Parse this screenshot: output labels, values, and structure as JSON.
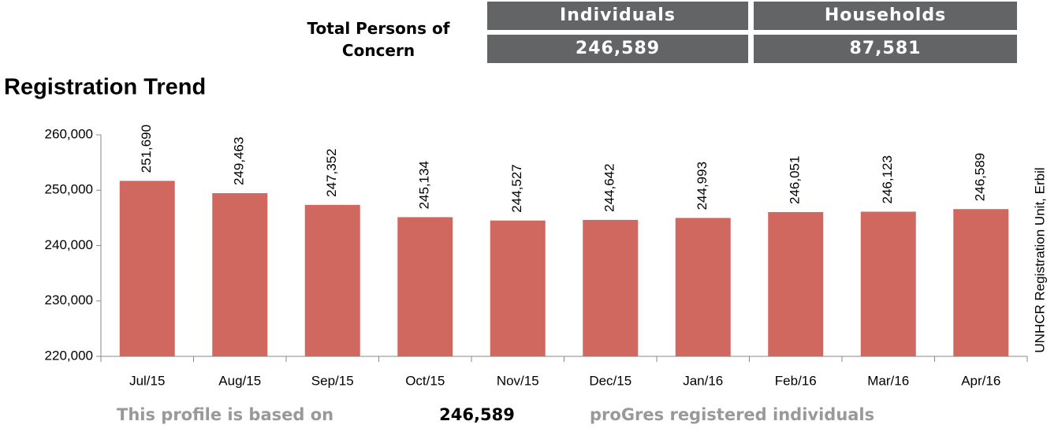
{
  "header": {
    "label": "Total Persons of Concern",
    "stats": [
      {
        "label": "Individuals",
        "value": "246,589"
      },
      {
        "label": "Households",
        "value": "87,581"
      }
    ]
  },
  "chart_data": {
    "type": "bar",
    "title": "Registration Trend",
    "categories": [
      "Jul/15",
      "Aug/15",
      "Sep/15",
      "Oct/15",
      "Nov/15",
      "Dec/15",
      "Jan/16",
      "Feb/16",
      "Mar/16",
      "Apr/16"
    ],
    "values": [
      251690,
      249463,
      247352,
      245134,
      244527,
      244642,
      244993,
      246051,
      246123,
      246589
    ],
    "value_labels": [
      "251,690",
      "249,463",
      "247,352",
      "245,134",
      "244,527",
      "244,642",
      "244,993",
      "246,051",
      "246,123",
      "246,589"
    ],
    "color": "#d16860",
    "ylim": [
      220000,
      260000
    ],
    "yticks": [
      {
        "value": 220000,
        "label": "220,000"
      },
      {
        "value": 230000,
        "label": "230,000"
      },
      {
        "value": 240000,
        "label": "240,000"
      },
      {
        "value": 250000,
        "label": "250,000"
      },
      {
        "value": 260000,
        "label": "260,000"
      }
    ]
  },
  "side_note": "UNHCR Registration Unit, Erbil",
  "footer": {
    "prefix": "This profile is based on",
    "value": "246,589",
    "suffix": "proGres registered individuals"
  }
}
